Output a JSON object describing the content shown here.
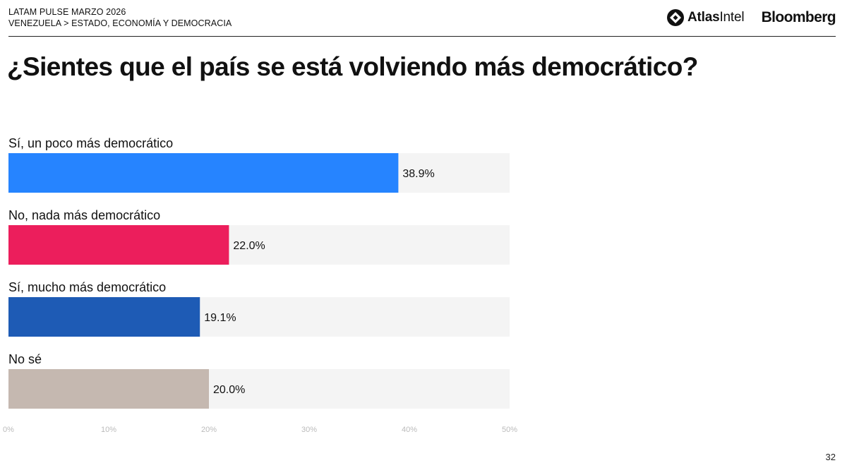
{
  "header": {
    "line1": "LATAM PULSE MARZO 2026",
    "line2": "VENEZUELA > ESTADO, ECONOMÍA Y DEMOCRACIA"
  },
  "logos": {
    "atlas_bold": "Atlas",
    "atlas_regular": "Intel",
    "bloomberg": "Bloomberg"
  },
  "page_number": "32",
  "chart_data": {
    "type": "bar",
    "orientation": "horizontal",
    "title": "¿Sientes que el país se está volviendo más democrático?",
    "categories": [
      "Sí, un poco más democrático",
      "No, nada más democrático",
      "Sí, mucho más democrático",
      "No sé"
    ],
    "values": [
      38.9,
      22.0,
      19.1,
      20.0
    ],
    "value_labels": [
      "38.9%",
      "22.0%",
      "19.1%",
      "20.0%"
    ],
    "colors": [
      "#2684FF",
      "#EC1E5C",
      "#1E5BB5",
      "#C5B8B0"
    ],
    "track_color": "#F4F4F4",
    "xlim": [
      0,
      50
    ],
    "xticks": [
      0,
      10,
      20,
      30,
      40,
      50
    ],
    "xtick_labels": [
      "0%",
      "10%",
      "20%",
      "30%",
      "40%",
      "50%"
    ],
    "grid": false,
    "legend": "none"
  }
}
